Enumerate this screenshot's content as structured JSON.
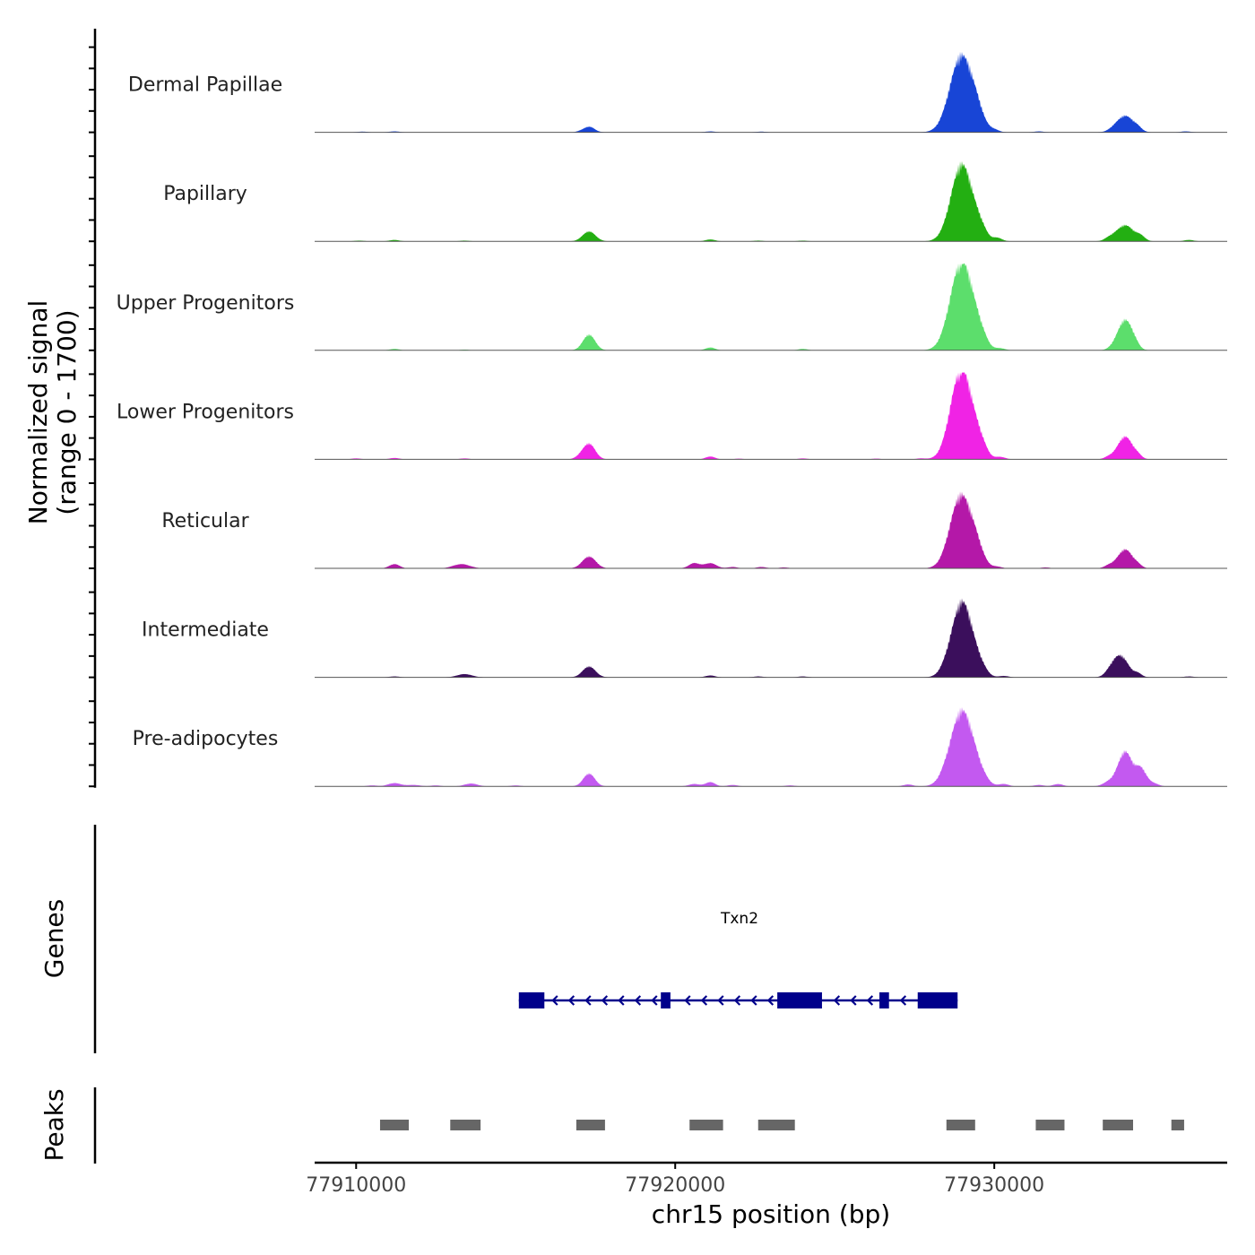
{
  "chart_data": {
    "type": "area",
    "title": "",
    "ylabel_line1": "Normalized signal",
    "ylabel_line2": "(range 0 - 1700)",
    "xlabel": "chr15 position (bp)",
    "chromosome": "chr15",
    "ylim": [
      0,
      1700
    ],
    "xlim": [
      77908700,
      77937300
    ],
    "x_ticks": [
      77910000,
      77920000,
      77930000
    ],
    "x_tick_labels": [
      "77910000",
      "77920000",
      "77930000"
    ],
    "tracks": [
      {
        "name": "Dermal Papillae",
        "color": "#1845D6",
        "peaks": [
          [
            77910200,
            15,
            150
          ],
          [
            77911200,
            20,
            150
          ],
          [
            77917300,
            120,
            170
          ],
          [
            77917000,
            15,
            100
          ],
          [
            77921100,
            20,
            150
          ],
          [
            77922700,
            15,
            150
          ],
          [
            77928700,
            70,
            220
          ],
          [
            77929000,
            1600,
            370
          ],
          [
            77929500,
            120,
            170
          ],
          [
            77930000,
            40,
            150
          ],
          [
            77931400,
            20,
            150
          ],
          [
            77933700,
            30,
            150
          ],
          [
            77934100,
            350,
            260
          ],
          [
            77934500,
            60,
            130
          ],
          [
            77936000,
            20,
            150
          ]
        ]
      },
      {
        "name": "Papillary",
        "color": "#23AF12",
        "peaks": [
          [
            77910100,
            15,
            150
          ],
          [
            77911200,
            30,
            150
          ],
          [
            77913400,
            15,
            150
          ],
          [
            77917300,
            210,
            200
          ],
          [
            77921100,
            40,
            150
          ],
          [
            77922600,
            15,
            150
          ],
          [
            77924000,
            15,
            150
          ],
          [
            77928700,
            60,
            220
          ],
          [
            77929000,
            1600,
            340
          ],
          [
            77929600,
            150,
            170
          ],
          [
            77930100,
            70,
            150
          ],
          [
            77933600,
            50,
            150
          ],
          [
            77934100,
            340,
            280
          ],
          [
            77934600,
            80,
            130
          ],
          [
            77936100,
            30,
            150
          ]
        ]
      },
      {
        "name": "Upper Progenitors",
        "color": "#5CDE6C",
        "peaks": [
          [
            77911200,
            30,
            150
          ],
          [
            77913400,
            15,
            150
          ],
          [
            77917300,
            330,
            190
          ],
          [
            77921100,
            60,
            150
          ],
          [
            77924000,
            30,
            150
          ],
          [
            77928700,
            70,
            220
          ],
          [
            77929000,
            1850,
            360
          ],
          [
            77929600,
            140,
            180
          ],
          [
            77930200,
            40,
            150
          ],
          [
            77933700,
            30,
            150
          ],
          [
            77934100,
            640,
            230
          ],
          [
            77934400,
            60,
            130
          ]
        ]
      },
      {
        "name": "Lower Progenitors",
        "color": "#F023E5",
        "peaks": [
          [
            77910000,
            20,
            150
          ],
          [
            77911200,
            30,
            150
          ],
          [
            77913400,
            20,
            150
          ],
          [
            77917300,
            330,
            190
          ],
          [
            77917000,
            40,
            150
          ],
          [
            77921100,
            60,
            150
          ],
          [
            77922000,
            15,
            150
          ],
          [
            77924000,
            20,
            150
          ],
          [
            77926300,
            15,
            150
          ],
          [
            77927700,
            20,
            150
          ],
          [
            77928700,
            130,
            220
          ],
          [
            77929000,
            1850,
            340
          ],
          [
            77929600,
            180,
            180
          ],
          [
            77930200,
            50,
            150
          ],
          [
            77933600,
            50,
            150
          ],
          [
            77934100,
            480,
            230
          ],
          [
            77934500,
            60,
            130
          ]
        ]
      },
      {
        "name": "Reticular",
        "color": "#B418A8",
        "peaks": [
          [
            77911200,
            90,
            160
          ],
          [
            77913300,
            90,
            260
          ],
          [
            77917300,
            250,
            210
          ],
          [
            77920600,
            110,
            170
          ],
          [
            77921100,
            110,
            190
          ],
          [
            77921800,
            30,
            150
          ],
          [
            77922700,
            30,
            150
          ],
          [
            77923400,
            20,
            150
          ],
          [
            77928700,
            120,
            220
          ],
          [
            77929000,
            1500,
            350
          ],
          [
            77929500,
            150,
            180
          ],
          [
            77930100,
            30,
            150
          ],
          [
            77931600,
            20,
            150
          ],
          [
            77933600,
            60,
            150
          ],
          [
            77934100,
            400,
            230
          ],
          [
            77934500,
            50,
            130
          ]
        ]
      },
      {
        "name": "Intermediate",
        "color": "#3B0F5C",
        "peaks": [
          [
            77911200,
            20,
            150
          ],
          [
            77913400,
            70,
            230
          ],
          [
            77917300,
            230,
            200
          ],
          [
            77921100,
            40,
            150
          ],
          [
            77922600,
            20,
            150
          ],
          [
            77924000,
            20,
            150
          ],
          [
            77928500,
            60,
            200
          ],
          [
            77929000,
            1600,
            330
          ],
          [
            77929600,
            110,
            180
          ],
          [
            77930300,
            30,
            150
          ],
          [
            77933700,
            180,
            190
          ],
          [
            77934000,
            400,
            220
          ],
          [
            77934500,
            80,
            130
          ],
          [
            77936100,
            20,
            150
          ]
        ]
      },
      {
        "name": "Pre-adipocytes",
        "color": "#C359F0",
        "peaks": [
          [
            77910500,
            20,
            150
          ],
          [
            77911200,
            70,
            200
          ],
          [
            77911800,
            30,
            200
          ],
          [
            77912500,
            20,
            150
          ],
          [
            77913600,
            60,
            200
          ],
          [
            77915000,
            20,
            150
          ],
          [
            77917300,
            270,
            180
          ],
          [
            77920600,
            50,
            170
          ],
          [
            77921100,
            90,
            150
          ],
          [
            77921800,
            30,
            150
          ],
          [
            77923600,
            20,
            150
          ],
          [
            77927300,
            40,
            150
          ],
          [
            77928500,
            60,
            220
          ],
          [
            77929000,
            1600,
            360
          ],
          [
            77929600,
            80,
            200
          ],
          [
            77930300,
            50,
            150
          ],
          [
            77931400,
            30,
            150
          ],
          [
            77932000,
            50,
            150
          ],
          [
            77933600,
            90,
            190
          ],
          [
            77934100,
            730,
            220
          ],
          [
            77934600,
            360,
            170
          ],
          [
            77935000,
            60,
            150
          ]
        ]
      }
    ],
    "gene_track": {
      "label": "Genes",
      "gene_name": "Txn2",
      "strand": "-",
      "color": "#00008B",
      "start": 77915100,
      "end": 77928850,
      "exons": [
        [
          77915100,
          77915900
        ],
        [
          77919550,
          77919850
        ],
        [
          77923200,
          77924600
        ],
        [
          77926400,
          77926700
        ],
        [
          77927600,
          77928850
        ]
      ]
    },
    "peak_track": {
      "label": "Peaks",
      "color": "#666666",
      "peaks": [
        [
          77910750,
          77911650
        ],
        [
          77912950,
          77913900
        ],
        [
          77916900,
          77917800
        ],
        [
          77920450,
          77921500
        ],
        [
          77922600,
          77923750
        ],
        [
          77928500,
          77929400
        ],
        [
          77931300,
          77932200
        ],
        [
          77933400,
          77934350
        ],
        [
          77935550,
          77935950
        ]
      ]
    }
  }
}
